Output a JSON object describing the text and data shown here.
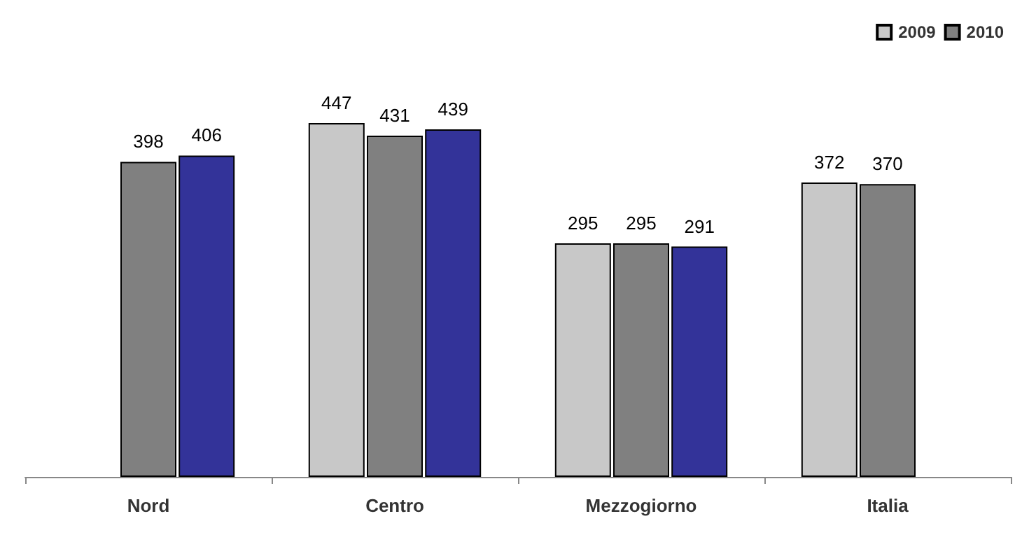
{
  "chart_data": {
    "type": "bar",
    "categories": [
      "Nord",
      "Centro",
      "Mezzogiorno",
      "Italia"
    ],
    "series": [
      {
        "name": "2009",
        "color": "#c8c8c8",
        "values": [
          null,
          447,
          295,
          372
        ]
      },
      {
        "name": "2010",
        "color": "#808080",
        "values": [
          398,
          431,
          295,
          370
        ]
      },
      {
        "color": "#333399",
        "values": [
          406,
          439,
          291,
          null
        ]
      }
    ],
    "data_labels": true,
    "legend": "top right",
    "grid": false
  }
}
